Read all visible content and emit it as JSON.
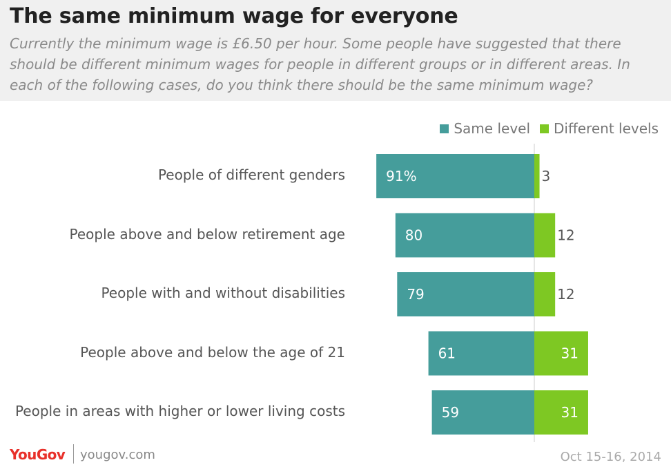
{
  "title": "The same minimum wage for everyone",
  "subtitle": "Currently the minimum wage is £6.50 per hour. Some people have suggested that there should be different minimum wages for people in different groups or in different areas. In each of the following cases, do you think there should be the same minimum wage?",
  "legend": {
    "same": "Same level",
    "different": "Different levels"
  },
  "colors": {
    "same": "#459d9b",
    "different": "#7ec823",
    "header_bg": "#f0f0f0",
    "brand": "#e8302a"
  },
  "chart_data": {
    "type": "bar",
    "orientation": "horizontal-diverging",
    "categories": [
      "People of different genders",
      "People above and below retirement age",
      "People with and without disabilities",
      "People above and below the age of 21",
      "People in areas with higher or lower living costs"
    ],
    "series": [
      {
        "name": "Same level",
        "values": [
          91,
          80,
          79,
          61,
          59
        ],
        "labels": [
          "91%",
          "80",
          "79",
          "61",
          "59"
        ]
      },
      {
        "name": "Different levels",
        "values": [
          3,
          12,
          12,
          31,
          31
        ],
        "labels": [
          "3",
          "12",
          "12",
          "31",
          "31"
        ]
      }
    ],
    "legend_position": "top-right",
    "grid": false
  },
  "footer": {
    "logo": "YouGov",
    "site": "yougov.com",
    "date": "Oct 15-16, 2014"
  }
}
